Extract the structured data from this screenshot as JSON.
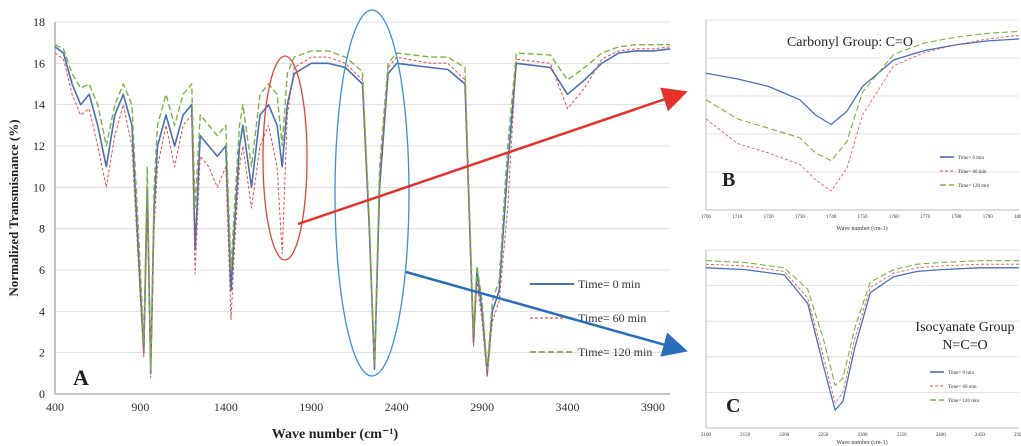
{
  "colors": {
    "series_0": "#4a6fb3",
    "series_60": "#d9534f",
    "series_120": "#7cb342",
    "highlight_red": "#e8403a",
    "highlight_blue": "#3b8fd9",
    "arrow_red": "#e8302a",
    "arrow_blue": "#2a6ebb",
    "grid": "#d9d9d9"
  },
  "chart_data": [
    {
      "type": "line",
      "panel": "A",
      "xlabel": "Wave number (cm⁻¹)",
      "ylabel": "Normalized Transmisnance (%)",
      "xlim": [
        400,
        4000
      ],
      "ylim": [
        0,
        18
      ],
      "xticks": [
        400,
        900,
        1400,
        1900,
        2400,
        2900,
        3400,
        3900
      ],
      "xtick_labels": [
        "400",
        "900",
        "1400",
        "1900",
        "2400",
        "2900",
        "3400",
        "3900"
      ],
      "yticks": [
        0,
        2,
        4,
        6,
        8,
        10,
        12,
        14,
        16,
        18
      ],
      "ytick_labels": [
        "0",
        "2",
        "4",
        "6",
        "8",
        "10",
        "12",
        "14",
        "16",
        "18"
      ],
      "grid": true,
      "legend_position": "right",
      "annotations": [
        "Carbonyl region circled near 1730 cm-1",
        "Isocyanate region circled near 2270 cm-1"
      ],
      "series": [
        {
          "name": "Time= 0 min",
          "x": [
            400,
            450,
            500,
            550,
            600,
            650,
            700,
            750,
            800,
            850,
            900,
            920,
            940,
            960,
            980,
            1000,
            1050,
            1100,
            1150,
            1200,
            1220,
            1250,
            1300,
            1350,
            1400,
            1430,
            1450,
            1480,
            1500,
            1550,
            1600,
            1650,
            1700,
            1730,
            1760,
            1800,
            1900,
            2000,
            2100,
            2200,
            2240,
            2270,
            2300,
            2350,
            2400,
            2600,
            2700,
            2800,
            2850,
            2870,
            2900,
            2930,
            2960,
            3000,
            3050,
            3100,
            3300,
            3400,
            3500,
            3600,
            3700,
            3800,
            3900,
            4000
          ],
          "y": [
            16.8,
            16.5,
            15,
            14,
            14.5,
            13,
            11,
            13.5,
            14.5,
            13,
            5,
            2,
            10,
            1,
            9,
            12,
            13.5,
            12,
            13.5,
            14,
            7,
            12.5,
            12,
            11.5,
            12,
            5,
            8,
            12,
            13,
            10,
            13.5,
            14,
            13,
            11,
            14,
            15.5,
            16,
            16,
            15.8,
            15,
            8,
            1.2,
            10,
            15.5,
            16,
            15.8,
            15.7,
            15,
            2.5,
            6,
            4,
            1,
            4,
            5,
            11,
            16,
            15.8,
            14.5,
            15.2,
            16,
            16.5,
            16.6,
            16.6,
            16.7
          ]
        },
        {
          "name": "Time= 60 min",
          "x": [
            400,
            450,
            500,
            550,
            600,
            650,
            700,
            750,
            800,
            850,
            900,
            920,
            940,
            960,
            980,
            1000,
            1050,
            1100,
            1150,
            1200,
            1220,
            1250,
            1300,
            1350,
            1400,
            1430,
            1450,
            1480,
            1500,
            1550,
            1600,
            1650,
            1700,
            1730,
            1760,
            1800,
            1900,
            2000,
            2100,
            2200,
            2240,
            2270,
            2300,
            2350,
            2400,
            2600,
            2700,
            2800,
            2850,
            2870,
            2900,
            2930,
            2960,
            3000,
            3050,
            3100,
            3300,
            3400,
            3500,
            3600,
            3700,
            3800,
            3900,
            4000
          ],
          "y": [
            16.5,
            16.2,
            14.5,
            13.5,
            13.8,
            12,
            10,
            12.5,
            14,
            12,
            4.5,
            1.8,
            9,
            0.8,
            8,
            11,
            13,
            11,
            13,
            13.5,
            5.8,
            11.5,
            11,
            10,
            11,
            3.6,
            7,
            11,
            12,
            9,
            12,
            13,
            11,
            6.8,
            13.5,
            15.8,
            16.3,
            16.3,
            16,
            15.2,
            8,
            1.3,
            10.5,
            15.8,
            16.3,
            16,
            16,
            15.2,
            2.3,
            5.5,
            3.5,
            0.8,
            3.5,
            4.5,
            9,
            16.2,
            16,
            13.8,
            14.8,
            16.2,
            16.6,
            16.7,
            16.7,
            16.8
          ]
        },
        {
          "name": "Time= 120 min",
          "x": [
            400,
            450,
            500,
            550,
            600,
            650,
            700,
            750,
            800,
            850,
            900,
            920,
            940,
            960,
            980,
            1000,
            1050,
            1100,
            1150,
            1200,
            1220,
            1250,
            1300,
            1350,
            1400,
            1430,
            1450,
            1480,
            1500,
            1550,
            1600,
            1650,
            1700,
            1730,
            1760,
            1800,
            1900,
            2000,
            2100,
            2200,
            2240,
            2270,
            2300,
            2350,
            2400,
            2600,
            2700,
            2800,
            2850,
            2870,
            2900,
            2930,
            2960,
            3000,
            3050,
            3100,
            3300,
            3400,
            3500,
            3600,
            3700,
            3800,
            3900,
            4000
          ],
          "y": [
            16.9,
            16.7,
            15.5,
            14.8,
            15,
            14,
            12,
            14,
            15,
            14,
            6,
            2.5,
            11,
            1.2,
            10,
            13,
            14.5,
            13,
            14.5,
            15,
            9,
            13.5,
            13,
            12.5,
            13,
            6,
            9,
            13,
            14,
            11,
            14.5,
            15,
            14.5,
            12,
            15.5,
            16.3,
            16.6,
            16.6,
            16.3,
            15.6,
            8.5,
            1.5,
            11,
            16,
            16.5,
            16.3,
            16.3,
            15.8,
            3,
            6.2,
            4.5,
            1.2,
            4.5,
            5.5,
            12,
            16.5,
            16.4,
            15.2,
            15.8,
            16.5,
            16.8,
            16.9,
            16.9,
            16.9
          ]
        }
      ]
    },
    {
      "type": "line",
      "panel": "B",
      "title": "Carbonyl Group: C=O",
      "xlabel": "Wave number (cm-1)",
      "xlim": [
        1700,
        1800
      ],
      "xticks": [
        1700,
        1710,
        1720,
        1730,
        1740,
        1750,
        1760,
        1770,
        1780,
        1790,
        1800
      ],
      "xtick_labels": [
        "1700",
        "1710",
        "1720",
        "1730",
        "1740",
        "1750",
        "1760",
        "1770",
        "1780",
        "1790",
        "1800"
      ],
      "ylim": [
        0,
        10
      ],
      "grid": true,
      "legend_position": "right",
      "series": [
        {
          "name": "Time= 0 min",
          "x": [
            1700,
            1710,
            1720,
            1730,
            1735,
            1740,
            1745,
            1750,
            1760,
            1770,
            1780,
            1790,
            1800
          ],
          "y": [
            7.2,
            6.9,
            6.5,
            5.8,
            5.0,
            4.5,
            5.2,
            6.5,
            7.9,
            8.4,
            8.7,
            8.9,
            9.0
          ]
        },
        {
          "name": "Time= 60 min",
          "x": [
            1700,
            1710,
            1720,
            1730,
            1735,
            1740,
            1745,
            1750,
            1760,
            1770,
            1780,
            1790,
            1800
          ],
          "y": [
            4.8,
            3.5,
            3.0,
            2.4,
            1.6,
            1.0,
            2.2,
            5.0,
            7.6,
            8.3,
            8.7,
            9.0,
            9.2
          ]
        },
        {
          "name": "Time= 120 min",
          "x": [
            1700,
            1710,
            1720,
            1730,
            1735,
            1740,
            1745,
            1750,
            1760,
            1770,
            1780,
            1790,
            1800
          ],
          "y": [
            5.8,
            4.8,
            4.3,
            3.8,
            3.0,
            2.6,
            3.6,
            6.2,
            8.2,
            8.8,
            9.1,
            9.3,
            9.4
          ]
        }
      ]
    },
    {
      "type": "line",
      "panel": "C",
      "title": "Isocyanate Group\nN=C=O",
      "xlabel": "Wave number (cm-1)",
      "xlim": [
        2100,
        2500
      ],
      "xticks": [
        2100,
        2150,
        2200,
        2250,
        2300,
        2350,
        2400,
        2450,
        2500
      ],
      "xtick_labels": [
        "2100",
        "2150",
        "2200",
        "2250",
        "2300",
        "2350",
        "2400",
        "2450",
        "2500"
      ],
      "ylim": [
        0,
        10
      ],
      "grid": true,
      "legend_position": "right",
      "series": [
        {
          "name": "Time= 0 min",
          "x": [
            2100,
            2150,
            2200,
            2230,
            2250,
            2265,
            2275,
            2290,
            2310,
            2340,
            2370,
            2400,
            2450,
            2500
          ],
          "y": [
            9.0,
            8.9,
            8.6,
            7.0,
            3.5,
            1.0,
            1.5,
            4.5,
            7.6,
            8.5,
            8.8,
            8.9,
            9.0,
            9.0
          ]
        },
        {
          "name": "Time= 60 min",
          "x": [
            2100,
            2150,
            2200,
            2230,
            2250,
            2265,
            2275,
            2290,
            2310,
            2340,
            2370,
            2400,
            2450,
            2500
          ],
          "y": [
            9.2,
            9.1,
            8.8,
            7.3,
            4.0,
            1.4,
            2.0,
            5.0,
            7.9,
            8.7,
            9.0,
            9.1,
            9.2,
            9.2
          ]
        },
        {
          "name": "Time= 120 min",
          "x": [
            2100,
            2150,
            2200,
            2230,
            2250,
            2265,
            2275,
            2290,
            2310,
            2340,
            2370,
            2400,
            2450,
            2500
          ],
          "y": [
            9.4,
            9.3,
            9.0,
            7.8,
            5.0,
            2.4,
            2.8,
            5.6,
            8.2,
            8.9,
            9.2,
            9.3,
            9.4,
            9.4
          ]
        }
      ]
    }
  ]
}
